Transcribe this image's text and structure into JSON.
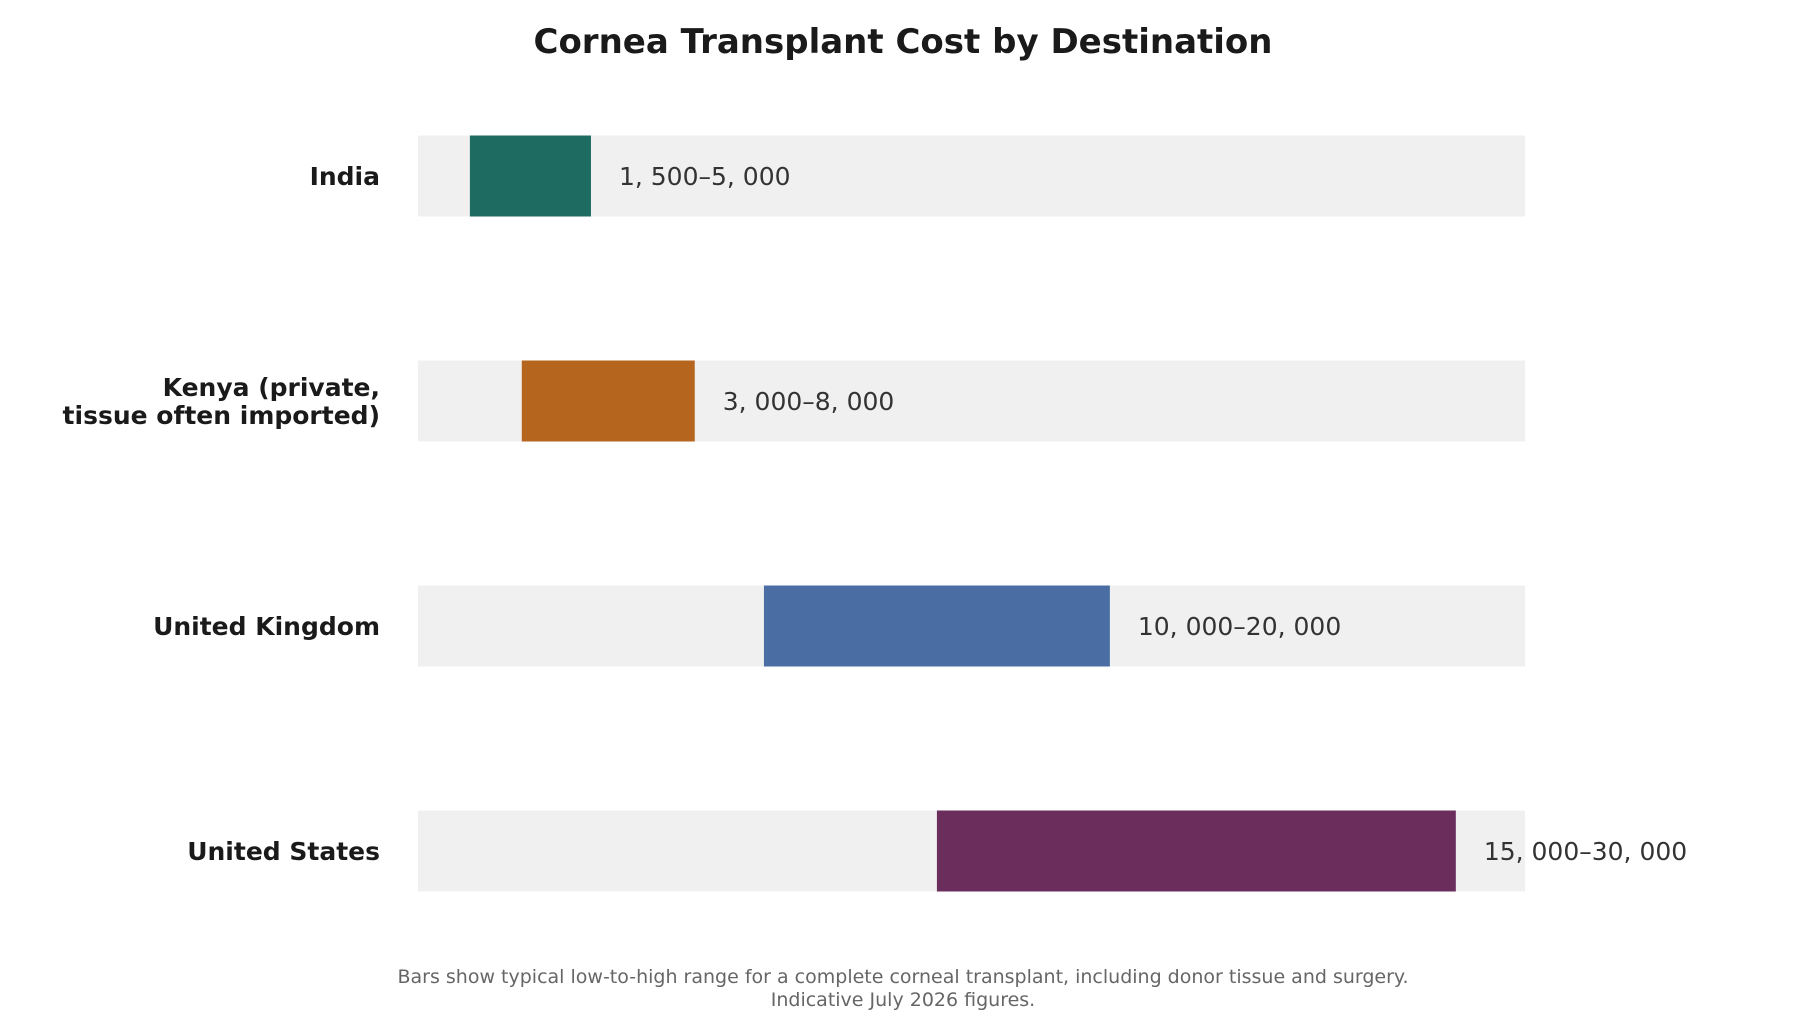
{
  "chart_data": {
    "type": "bar",
    "orientation": "horizontal",
    "title": "Cornea Transplant Cost by Destination",
    "xlabel": "",
    "ylabel": "",
    "xlim": [
      0,
      32000
    ],
    "grid": false,
    "legend": "none",
    "track_color": "#f0f0f0",
    "categories": [
      {
        "lines": [
          "India"
        ],
        "low": 1500,
        "high": 5000,
        "label": "1, 500–5, 000",
        "color": "#1e6b62"
      },
      {
        "lines": [
          "Kenya (private,",
          "tissue often imported)"
        ],
        "low": 3000,
        "high": 8000,
        "label": "3, 000–8, 000",
        "color": "#b5651e"
      },
      {
        "lines": [
          "United Kingdom"
        ],
        "low": 10000,
        "high": 20000,
        "label": "10, 000–20, 000",
        "color": "#4a6ea3"
      },
      {
        "lines": [
          "United States"
        ],
        "low": 15000,
        "high": 30000,
        "label": "15, 000–30, 000",
        "color": "#6a2d5c"
      }
    ],
    "footnote": [
      "Bars show typical low-to-high range for a complete corneal transplant, including donor tissue and surgery.",
      "Indicative July 2026 figures."
    ]
  }
}
